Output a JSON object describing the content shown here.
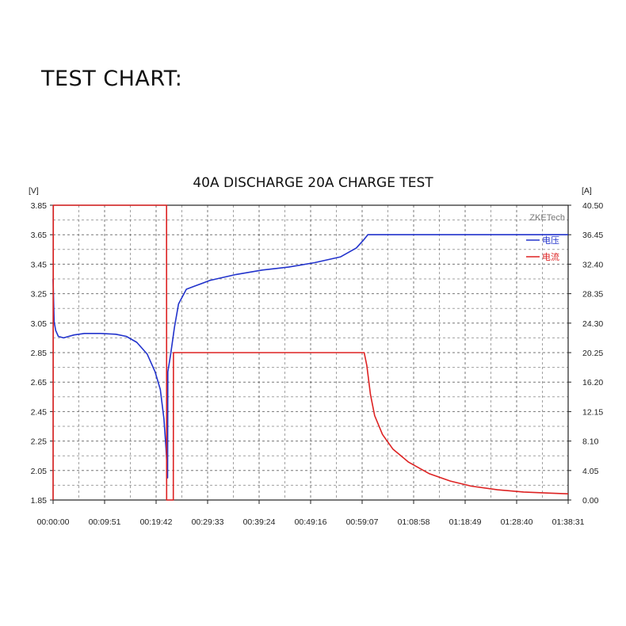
{
  "page": {
    "heading": "TEST CHART:"
  },
  "chart_data": {
    "type": "line",
    "title": "40A DISCHARGE 20A CHARGE TEST",
    "watermark": "ZKETech",
    "y_left": {
      "unit": "[V]",
      "range": [
        1.85,
        3.85
      ],
      "ticks": [
        "3.85",
        "3.65",
        "3.45",
        "3.25",
        "3.05",
        "2.85",
        "2.65",
        "2.45",
        "2.25",
        "2.05",
        "1.85"
      ]
    },
    "y_right": {
      "unit": "[A]",
      "range": [
        0,
        40.5
      ],
      "ticks": [
        "40.50",
        "36.45",
        "32.40",
        "28.35",
        "24.30",
        "20.25",
        "16.20",
        "12.15",
        "8.10",
        "4.05",
        "0.00"
      ]
    },
    "x": {
      "unit": "minutes",
      "range": [
        0,
        98.52
      ],
      "ticks": [
        "00:00:00",
        "00:09:51",
        "00:19:42",
        "00:29:33",
        "00:39:24",
        "00:49:16",
        "00:59:07",
        "01:08:58",
        "01:18:49",
        "01:28:40",
        "01:38:31"
      ]
    },
    "grid": true,
    "legend_position": "top-right",
    "series": [
      {
        "name": "电压",
        "axis": "left",
        "color": "#2233cc",
        "points": [
          [
            0,
            3.35
          ],
          [
            0.2,
            3.06
          ],
          [
            0.5,
            3.0
          ],
          [
            1,
            2.96
          ],
          [
            2,
            2.95
          ],
          [
            3,
            2.96
          ],
          [
            4,
            2.97
          ],
          [
            6,
            2.98
          ],
          [
            9,
            2.98
          ],
          [
            12,
            2.975
          ],
          [
            14,
            2.96
          ],
          [
            16,
            2.92
          ],
          [
            18,
            2.84
          ],
          [
            19.5,
            2.72
          ],
          [
            20.5,
            2.6
          ],
          [
            21.2,
            2.4
          ],
          [
            21.6,
            2.2
          ],
          [
            21.9,
            2.0
          ],
          [
            21.95,
            2.72
          ],
          [
            22.5,
            2.84
          ],
          [
            23.2,
            3.02
          ],
          [
            24,
            3.18
          ],
          [
            25.5,
            3.28
          ],
          [
            27,
            3.3
          ],
          [
            30,
            3.34
          ],
          [
            35,
            3.38
          ],
          [
            40,
            3.41
          ],
          [
            45,
            3.43
          ],
          [
            50,
            3.46
          ],
          [
            55,
            3.5
          ],
          [
            58,
            3.56
          ],
          [
            59.3,
            3.61
          ],
          [
            60.2,
            3.65
          ],
          [
            98.52,
            3.65
          ]
        ]
      },
      {
        "name": "电流",
        "axis": "right",
        "color": "#dd2222",
        "points": [
          [
            0,
            0
          ],
          [
            0.05,
            40.5
          ],
          [
            21.7,
            40.5
          ],
          [
            21.72,
            0
          ],
          [
            23.0,
            0
          ],
          [
            23.02,
            20.25
          ],
          [
            59.5,
            20.25
          ],
          [
            60.0,
            18.5
          ],
          [
            60.7,
            14.5
          ],
          [
            61.5,
            11.6
          ],
          [
            63,
            9.0
          ],
          [
            65,
            7.0
          ],
          [
            68,
            5.2
          ],
          [
            72,
            3.6
          ],
          [
            76,
            2.6
          ],
          [
            80,
            1.9
          ],
          [
            85,
            1.4
          ],
          [
            90,
            1.1
          ],
          [
            95,
            0.95
          ],
          [
            98.52,
            0.85
          ]
        ]
      }
    ]
  }
}
